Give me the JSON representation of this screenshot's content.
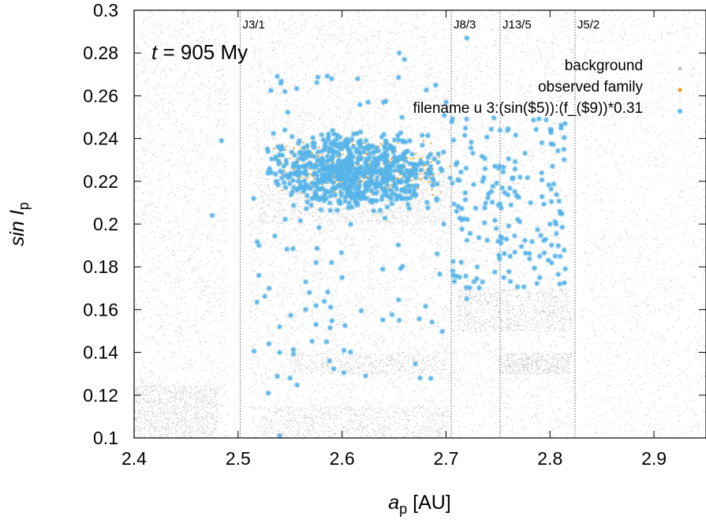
{
  "chart_data": {
    "type": "scatter",
    "time_label": {
      "var": "t",
      "rest": " = 905 My"
    },
    "xlabel": {
      "main": "a",
      "sub": "p",
      "unit": " [AU]"
    },
    "ylabel": {
      "main": "sin I",
      "sub": "p"
    },
    "xlim": [
      2.4,
      2.95
    ],
    "ylim": [
      0.1,
      0.3
    ],
    "xticks": [
      2.4,
      2.5,
      2.6,
      2.7,
      2.8,
      2.9
    ],
    "xtick_labels": [
      "2.4",
      "2.5",
      "2.6",
      "2.7",
      "2.8",
      "2.9"
    ],
    "yticks": [
      0.1,
      0.12,
      0.14,
      0.16,
      0.18,
      0.2,
      0.22,
      0.24,
      0.26,
      0.28,
      0.3
    ],
    "ytick_labels": [
      "0.1",
      "0.12",
      "0.14",
      "0.16",
      "0.18",
      "0.2",
      "0.22",
      "0.24",
      "0.26",
      "0.28",
      "0.3"
    ],
    "resonances": [
      {
        "label": "J3/1",
        "a": 2.502
      },
      {
        "label": "J8/3",
        "a": 2.705
      },
      {
        "label": "J13/5",
        "a": 2.752
      },
      {
        "label": "J5/2",
        "a": 2.824
      }
    ],
    "legend": {
      "position": "top-right",
      "entries": [
        "background",
        "observed family",
        "filename u 3:(sin($5)):(f_($9))*0.31"
      ]
    },
    "colors": {
      "background": "#c8c8c8",
      "observed": "#f0a020",
      "simulated": "#56b4e9"
    },
    "series": [
      {
        "name": "background",
        "clusters": [
          {
            "a": [
              2.4,
              2.49
            ],
            "s": [
              0.1,
              0.3
            ],
            "n": 1900
          },
          {
            "a": [
              2.51,
              2.705
            ],
            "s": [
              0.1,
              0.3
            ],
            "n": 4200
          },
          {
            "a": [
              2.705,
              2.825
            ],
            "s": [
              0.1,
              0.3
            ],
            "n": 2000
          },
          {
            "a": [
              2.83,
              2.95
            ],
            "s": [
              0.1,
              0.3
            ],
            "n": 1500
          },
          {
            "a": [
              2.4,
              2.48
            ],
            "s": [
              0.1,
              0.125
            ],
            "n": 900
          },
          {
            "a": [
              2.52,
              2.7
            ],
            "s": [
              0.2,
              0.225
            ],
            "n": 1200
          },
          {
            "a": [
              2.71,
              2.82
            ],
            "s": [
              0.15,
              0.17
            ],
            "n": 800
          },
          {
            "a": [
              2.75,
              2.82
            ],
            "s": [
              0.13,
              0.14
            ],
            "n": 500
          },
          {
            "a": [
              2.52,
              2.7
            ],
            "s": [
              0.1,
              0.115
            ],
            "n": 700
          },
          {
            "a": [
              2.55,
              2.7
            ],
            "s": [
              0.13,
              0.14
            ],
            "n": 500
          }
        ]
      },
      {
        "name": "observed family",
        "cloud": {
          "a": [
            2.53,
            2.705
          ],
          "s": [
            0.212,
            0.24
          ],
          "n": 420
        }
      },
      {
        "name": "filename u 3:(sin($5)):(f_($9))*0.31",
        "cloud": {
          "a": [
            2.52,
            2.705
          ],
          "s": [
            0.205,
            0.245
          ],
          "n": 700
        },
        "outer": {
          "a": [
            2.705,
            2.815
          ],
          "s": [
            0.17,
            0.25
          ],
          "n": 170
        },
        "halo": {
          "a": [
            2.515,
            2.7
          ],
          "s": [
            0.12,
            0.27
          ],
          "n": 90
        },
        "points": [
          [
            2.484,
            0.239
          ],
          [
            2.475,
            0.204
          ],
          [
            2.655,
            0.28
          ],
          [
            2.66,
            0.277
          ],
          [
            2.59,
            0.268
          ],
          [
            2.615,
            0.268
          ],
          [
            2.72,
            0.287
          ],
          [
            2.545,
            0.262
          ],
          [
            2.625,
            0.257
          ],
          [
            2.69,
            0.265
          ],
          [
            2.565,
            0.173
          ],
          [
            2.53,
            0.17
          ],
          [
            2.54,
            0.152
          ],
          [
            2.585,
            0.145
          ],
          [
            2.575,
            0.153
          ],
          [
            2.588,
            0.136
          ],
          [
            2.55,
            0.128
          ],
          [
            2.54,
            0.101
          ],
          [
            2.655,
            0.155
          ],
          [
            2.675,
            0.128
          ],
          [
            2.72,
            0.165
          ],
          [
            2.735,
            0.173
          ],
          [
            2.79,
            0.175
          ],
          [
            2.8,
            0.2
          ],
          [
            2.81,
            0.205
          ],
          [
            2.515,
            0.212
          ],
          [
            2.52,
            0.19
          ],
          [
            2.52,
            0.176
          ],
          [
            2.6,
            0.175
          ],
          [
            2.575,
            0.182
          ],
          [
            2.73,
            0.18
          ],
          [
            2.75,
            0.192
          ],
          [
            2.545,
            0.244
          ],
          [
            2.64,
            0.257
          ],
          [
            2.7,
            0.257
          ],
          [
            2.59,
            0.182
          ],
          [
            2.565,
            0.16
          ],
          [
            2.54,
            0.14
          ],
          [
            2.71,
            0.206
          ],
          [
            2.79,
            0.185
          ]
        ]
      }
    ]
  }
}
